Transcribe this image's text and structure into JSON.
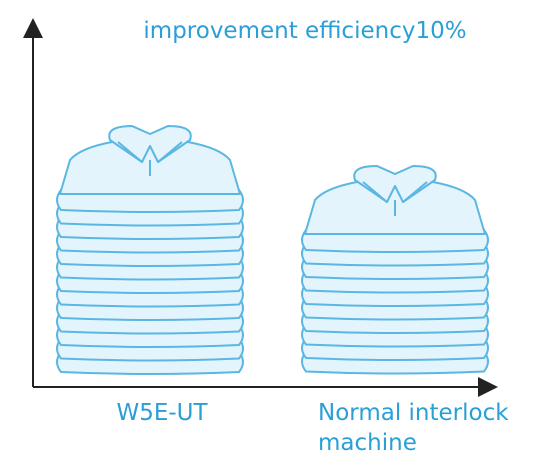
{
  "title": "improvement efficiency10%",
  "groups": [
    {
      "label": [
        "W5E-UT"
      ]
    },
    {
      "label": [
        "Normal interlock",
        "machine"
      ]
    }
  ]
}
